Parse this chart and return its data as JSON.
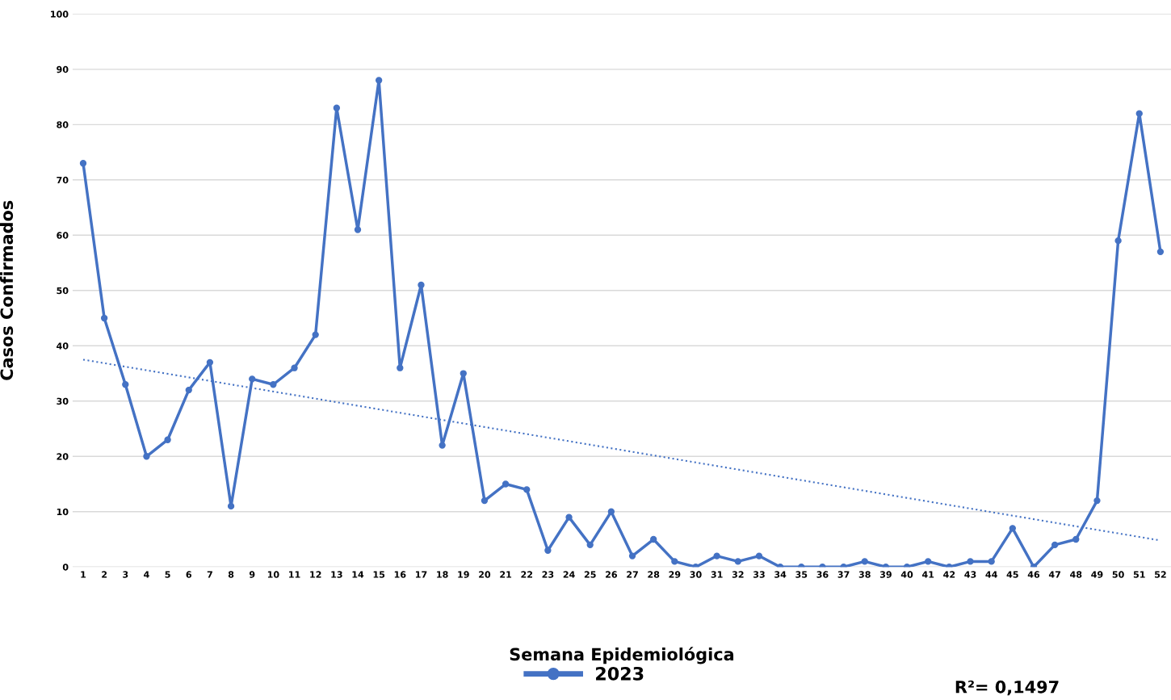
{
  "chart_data": {
    "type": "line",
    "xlabel": "Semana Epidemiológica",
    "ylabel": "Casos Confirmados",
    "categories": [
      "1",
      "2",
      "3",
      "4",
      "5",
      "6",
      "7",
      "8",
      "9",
      "10",
      "11",
      "12",
      "13",
      "14",
      "15",
      "16",
      "17",
      "18",
      "19",
      "20",
      "21",
      "22",
      "23",
      "24",
      "25",
      "26",
      "27",
      "28",
      "29",
      "30",
      "31",
      "32",
      "33",
      "34",
      "35",
      "36",
      "37",
      "38",
      "39",
      "40",
      "41",
      "42",
      "43",
      "44",
      "45",
      "46",
      "47",
      "48",
      "49",
      "50",
      "51",
      "52"
    ],
    "series": [
      {
        "name": "2023",
        "color": "#4472c4",
        "marker": "circle",
        "line_style": "solid",
        "values": [
          73,
          45,
          33,
          20,
          23,
          32,
          37,
          11,
          34,
          33,
          36,
          42,
          83,
          61,
          88,
          36,
          51,
          22,
          35,
          12,
          15,
          14,
          3,
          9,
          4,
          10,
          2,
          5,
          1,
          0,
          2,
          1,
          2,
          0,
          0,
          0,
          0,
          1,
          0,
          0,
          1,
          0,
          1,
          1,
          7,
          0,
          4,
          5,
          12,
          59,
          82,
          57
        ]
      },
      {
        "type": "line",
        "color": "#4472c4",
        "marker": "none",
        "line_style": "dotted",
        "x": [
          "1",
          "52"
        ],
        "values": [
          37.5,
          4.8
        ]
      }
    ],
    "ylim": [
      0,
      100
    ],
    "yticks": [
      0,
      10,
      20,
      30,
      40,
      50,
      60,
      70,
      80,
      90,
      100
    ],
    "grid": "y",
    "legend": "bottom",
    "annotations": [
      "R²= 0,1497"
    ]
  }
}
